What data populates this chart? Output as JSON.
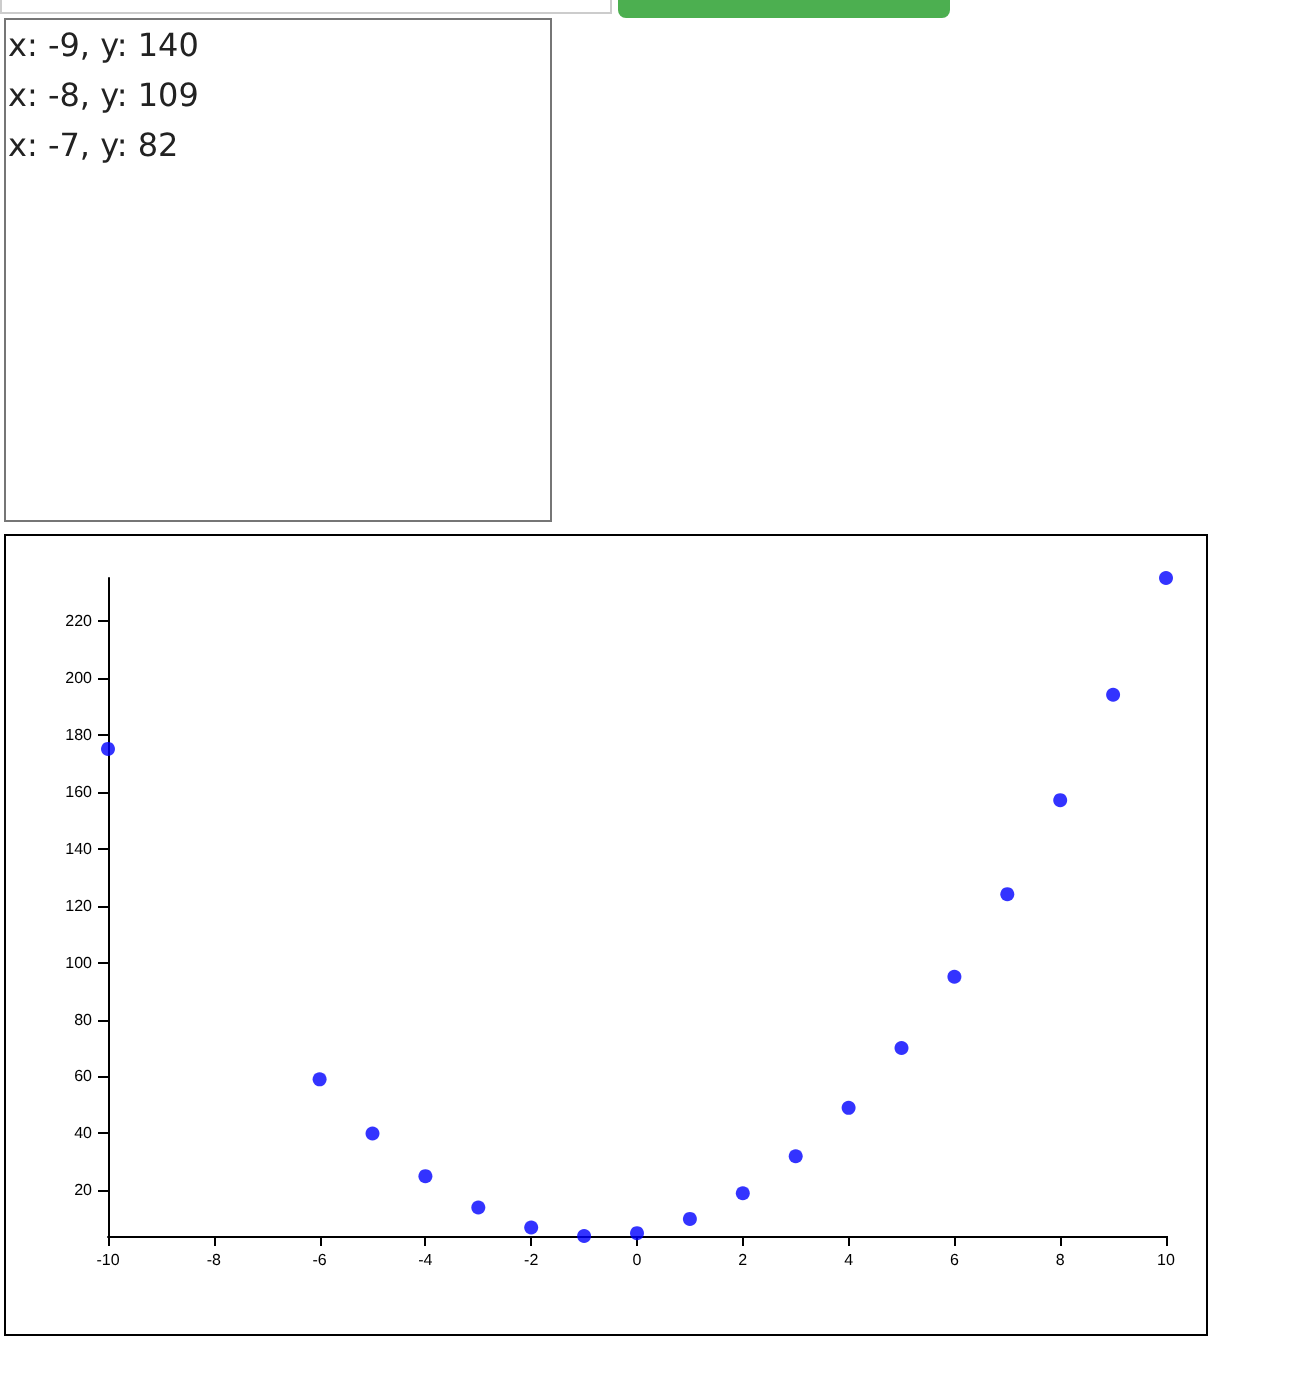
{
  "chart_data": {
    "type": "scatter",
    "x": [
      -10,
      -6,
      -5,
      -4,
      -3,
      -2,
      -1,
      0,
      1,
      2,
      3,
      4,
      5,
      6,
      7,
      8,
      9,
      10
    ],
    "values": [
      175,
      59,
      40,
      25,
      14,
      7,
      4,
      5,
      10,
      19,
      32,
      49,
      70,
      95,
      124,
      157,
      194,
      235
    ],
    "color": "#0000ff",
    "marker": "circle",
    "grid": false,
    "xlim": [
      -10,
      10
    ],
    "xticks": [
      -10,
      -8,
      -6,
      -4,
      -2,
      0,
      2,
      4,
      6,
      8,
      10
    ],
    "ylim": [
      4,
      235
    ],
    "yticks": [
      20,
      40,
      60,
      80,
      100,
      120,
      140,
      160,
      180,
      200,
      220
    ],
    "annotations": [
      "x: -9, y: 140",
      "x: -8, y: 109",
      "x: -7, y: 82"
    ]
  }
}
